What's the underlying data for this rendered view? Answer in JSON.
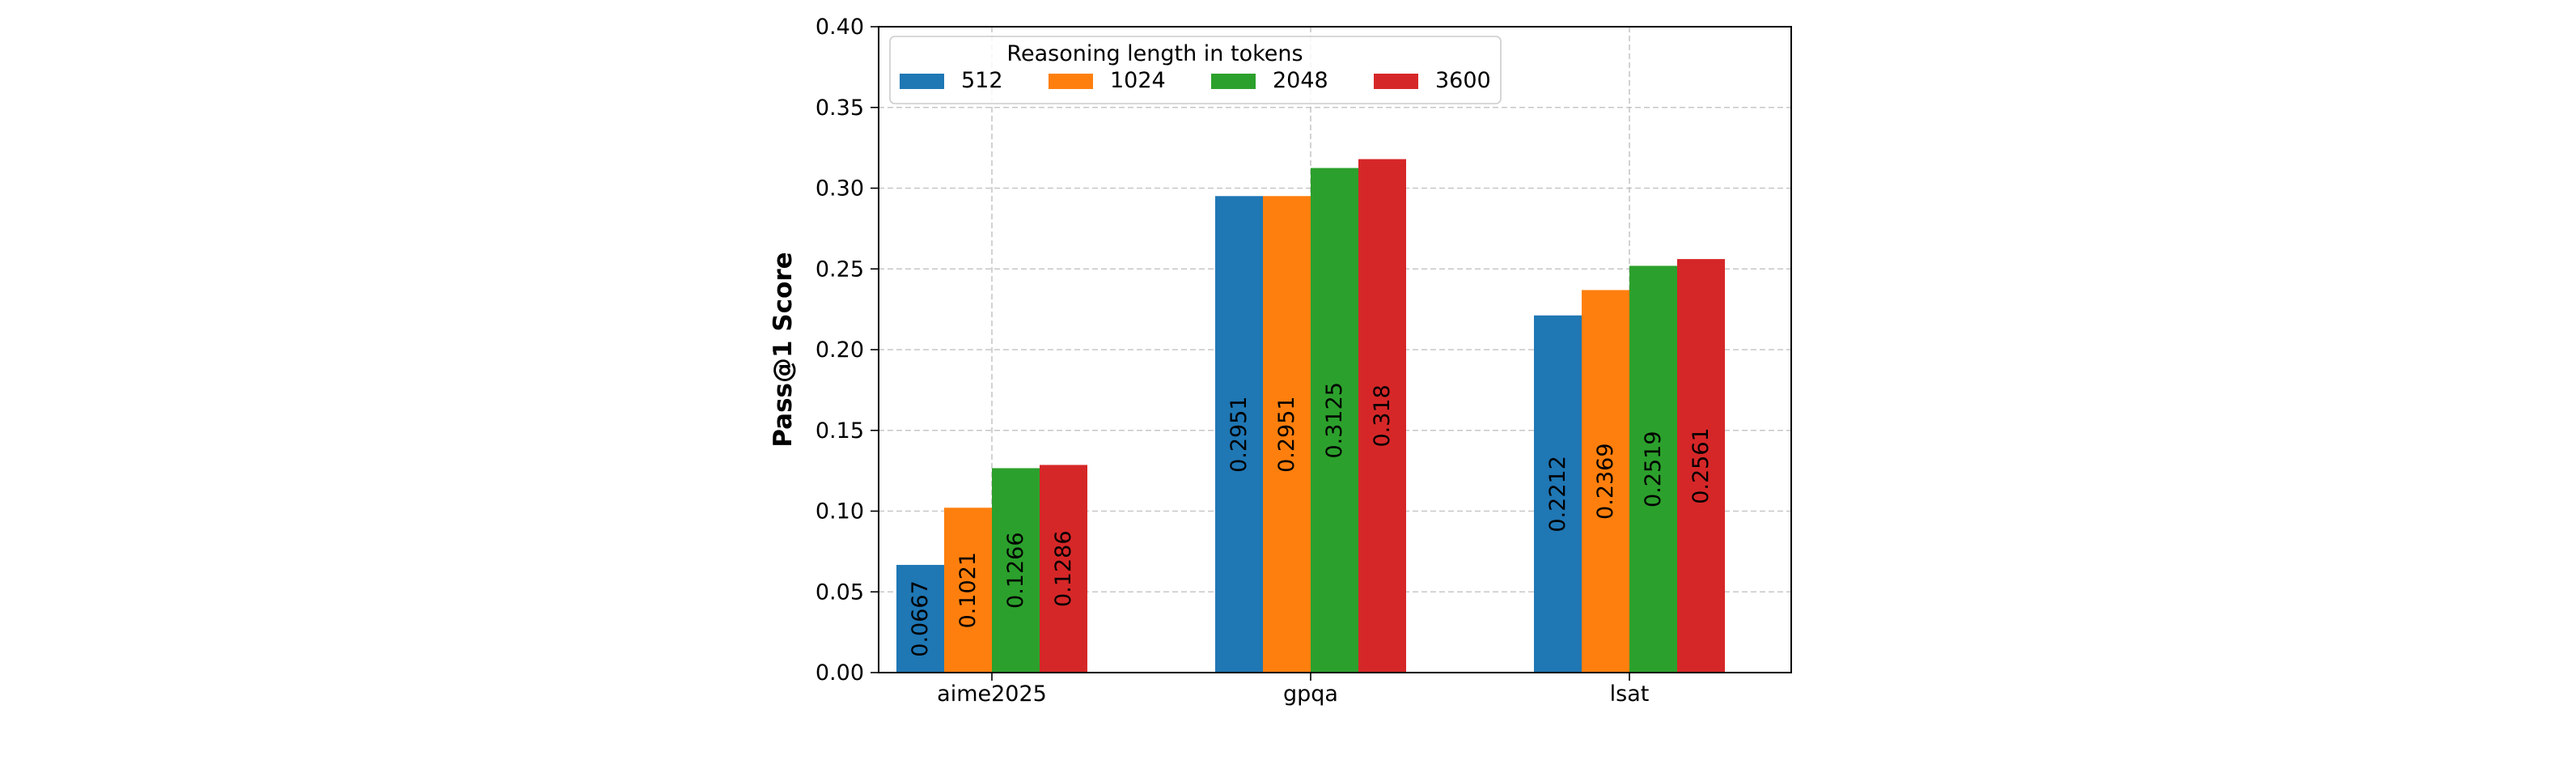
{
  "chart_data": {
    "type": "bar",
    "title": "",
    "xlabel": "",
    "ylabel": "Pass@1 Score",
    "ylim": [
      0,
      0.4
    ],
    "yticks": [
      "0.00",
      "0.05",
      "0.10",
      "0.15",
      "0.20",
      "0.25",
      "0.30",
      "0.35",
      "0.40"
    ],
    "grid": true,
    "legend_position": "top-left",
    "legend_title": "Reasoning length in tokens",
    "categories": [
      "aime2025",
      "gpqa",
      "lsat"
    ],
    "series": [
      {
        "name": "512",
        "color": "#1f77b4",
        "values": [
          0.0667,
          0.2951,
          0.2212
        ],
        "labels": [
          "0.0667",
          "0.2951",
          "0.2212"
        ]
      },
      {
        "name": "1024",
        "color": "#ff7f0e",
        "values": [
          0.1021,
          0.2951,
          0.2369
        ],
        "labels": [
          "0.1021",
          "0.2951",
          "0.2369"
        ]
      },
      {
        "name": "2048",
        "color": "#2ca02c",
        "values": [
          0.1266,
          0.3125,
          0.2519
        ],
        "labels": [
          "0.1266",
          "0.3125",
          "0.2519"
        ]
      },
      {
        "name": "3600",
        "color": "#d62728",
        "values": [
          0.1286,
          0.318,
          0.2561
        ],
        "labels": [
          "0.1286",
          "0.318",
          "0.2561"
        ]
      }
    ]
  }
}
